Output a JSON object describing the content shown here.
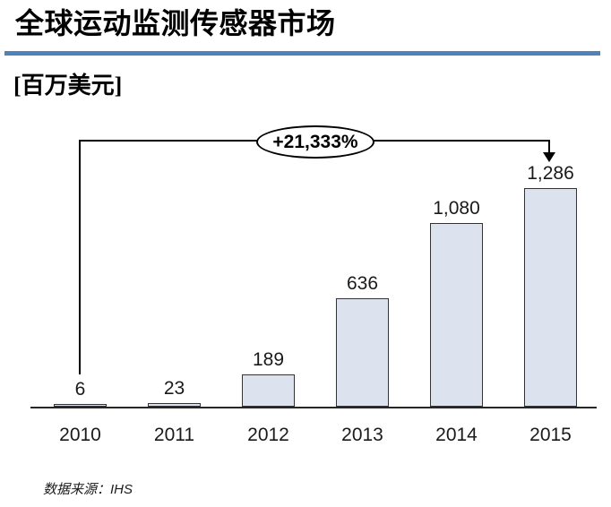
{
  "header": {
    "title": "全球运动监测传感器市场",
    "unit_label": "[百万美元]"
  },
  "annotation": {
    "growth_label": "+21,333%"
  },
  "footer": {
    "source_label": "数据来源：IHS"
  },
  "colors": {
    "accent_rule": "#4f81bd",
    "bar_fill": "#dce3ee",
    "bar_border": "#333333",
    "text": "#1a1a1a"
  },
  "chart_data": {
    "type": "bar",
    "title": "全球运动监测传感器市场",
    "ylabel": "百万美元",
    "xlabel": "",
    "categories": [
      "2010",
      "2011",
      "2012",
      "2013",
      "2014",
      "2015"
    ],
    "values": [
      6,
      23,
      189,
      636,
      1080,
      1286
    ],
    "value_labels": [
      "6",
      "23",
      "189",
      "636",
      "1,080",
      "1,286"
    ],
    "annotation": "+21,333%",
    "source": "数据来源：IHS",
    "ylim": [
      0,
      1300
    ],
    "grid": false,
    "legend": false
  }
}
